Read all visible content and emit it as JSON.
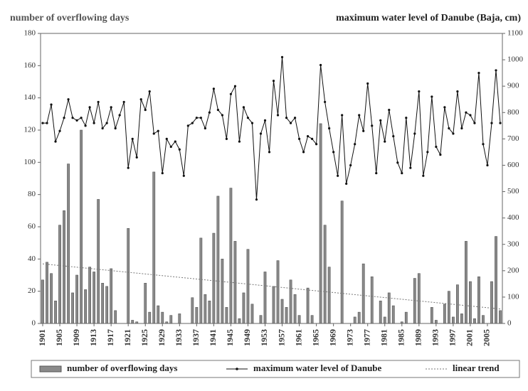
{
  "chart_data": {
    "type": "bar",
    "y_label": "number of overflowing days",
    "y2_label": "maximum water level of Danube (Baja, cm)",
    "x": [
      1901,
      1902,
      1903,
      1904,
      1905,
      1906,
      1907,
      1908,
      1909,
      1910,
      1911,
      1912,
      1913,
      1914,
      1915,
      1916,
      1917,
      1918,
      1919,
      1920,
      1921,
      1922,
      1923,
      1924,
      1925,
      1926,
      1927,
      1928,
      1929,
      1930,
      1931,
      1932,
      1933,
      1934,
      1935,
      1936,
      1937,
      1938,
      1939,
      1940,
      1941,
      1942,
      1943,
      1944,
      1945,
      1946,
      1947,
      1948,
      1949,
      1950,
      1951,
      1952,
      1953,
      1954,
      1955,
      1956,
      1957,
      1958,
      1959,
      1960,
      1961,
      1962,
      1963,
      1964,
      1965,
      1966,
      1967,
      1968,
      1969,
      1970,
      1971,
      1972,
      1973,
      1974,
      1975,
      1976,
      1977,
      1978,
      1979,
      1980,
      1981,
      1982,
      1983,
      1984,
      1985,
      1986,
      1987,
      1988,
      1989,
      1990,
      1991,
      1992,
      1993,
      1994,
      1995,
      1996,
      1997,
      1998,
      1999,
      2000,
      2001,
      2002,
      2003,
      2004,
      2005,
      2006,
      2007,
      2008
    ],
    "series": [
      {
        "name": "number of overflowing days",
        "color": "#8a8a8a",
        "values": [
          27,
          38,
          31,
          14,
          61,
          70,
          99,
          19,
          30,
          120,
          21,
          35,
          32,
          77,
          25,
          23,
          34,
          8,
          0,
          0,
          59,
          2,
          1,
          0,
          25,
          7,
          94,
          11,
          7,
          1,
          5,
          0,
          6,
          0,
          0,
          16,
          10,
          53,
          18,
          14,
          56,
          79,
          40,
          10,
          84,
          51,
          3,
          19,
          46,
          12,
          0,
          5,
          32,
          0,
          23,
          39,
          15,
          10,
          27,
          18,
          5,
          0,
          22,
          5,
          0,
          124,
          61,
          35,
          0,
          0,
          76,
          0,
          0,
          4,
          7,
          37,
          0,
          29,
          0,
          14,
          4,
          19,
          11,
          0,
          1,
          7,
          0,
          28,
          31,
          0,
          0,
          10,
          2,
          0,
          12,
          20,
          4,
          24,
          6,
          51,
          26,
          3,
          29,
          5,
          0,
          26,
          54,
          8
        ]
      },
      {
        "name": "maximum water level of Danube",
        "type": "line",
        "axis": "y2",
        "color": "#111111",
        "values": [
          760,
          760,
          830,
          690,
          730,
          780,
          850,
          780,
          770,
          780,
          750,
          820,
          760,
          840,
          740,
          760,
          820,
          740,
          790,
          840,
          590,
          700,
          630,
          850,
          810,
          880,
          720,
          730,
          570,
          700,
          670,
          690,
          660,
          560,
          750,
          760,
          780,
          780,
          740,
          800,
          890,
          810,
          790,
          700,
          870,
          900,
          690,
          820,
          780,
          760,
          470,
          720,
          770,
          650,
          920,
          790,
          1010,
          780,
          760,
          780,
          700,
          650,
          710,
          700,
          680,
          980,
          840,
          740,
          650,
          560,
          790,
          530,
          600,
          680,
          790,
          730,
          910,
          750,
          570,
          770,
          690,
          810,
          710,
          610,
          570,
          780,
          590,
          720,
          880,
          560,
          650,
          860,
          670,
          640,
          820,
          740,
          720,
          880,
          740,
          800,
          790,
          760,
          950,
          680,
          600,
          760,
          960,
          760
        ]
      },
      {
        "name": "linear trend",
        "type": "trend",
        "color": "#777777",
        "x": [
          1901,
          2008
        ],
        "values": [
          37,
          9
        ]
      }
    ],
    "xlim": [
      1900.5,
      2008.5
    ],
    "xticks": [
      1901,
      1905,
      1909,
      1913,
      1917,
      1921,
      1925,
      1929,
      1933,
      1937,
      1941,
      1945,
      1949,
      1953,
      1957,
      1961,
      1965,
      1969,
      1973,
      1977,
      1981,
      1985,
      1989,
      1993,
      1997,
      2001,
      2005
    ],
    "ylim": [
      0,
      180
    ],
    "yticks": [
      0,
      20,
      40,
      60,
      80,
      100,
      120,
      140,
      160,
      180
    ],
    "y2lim": [
      0,
      1100
    ],
    "y2ticks": [
      0,
      100,
      200,
      300,
      400,
      500,
      600,
      700,
      800,
      900,
      1000,
      1100
    ]
  }
}
